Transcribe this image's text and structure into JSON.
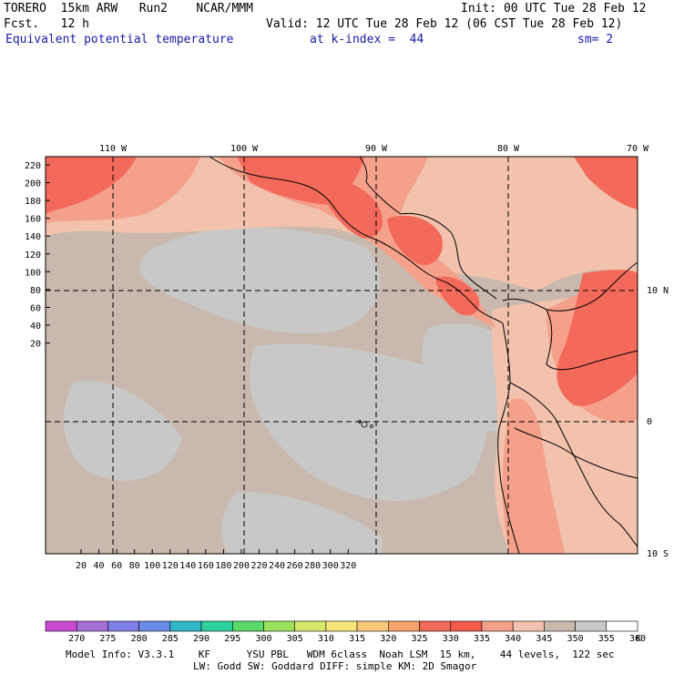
{
  "header": {
    "line1_left": "TORERO  15km ARW   Run2    NCAR/MMM",
    "line1_right": "Init: 00 UTC Tue 28 Feb 12",
    "line2_left": "Fcst.   12 h",
    "line2_right": "Valid: 12 UTC Tue 28 Feb 12 (06 CST Tue 28 Feb 12)",
    "line3_field": "Equivalent potential temperature",
    "line3_level": "at k-index =  44",
    "line3_sm": "sm= 2"
  },
  "map": {
    "top_lon_labels": [
      "110 W",
      "100 W",
      "90 W",
      "80 W",
      "70 W"
    ],
    "right_lat_labels": [
      "10 N",
      "0",
      "10 S"
    ],
    "y_grid_labels": [
      "220",
      "200",
      "180",
      "160",
      "140",
      "120",
      "100",
      "80",
      "60",
      "40",
      "20"
    ],
    "x_grid_labels": [
      "20",
      "40",
      "60",
      "80",
      "100",
      "120",
      "140",
      "160",
      "180",
      "200",
      "220",
      "240",
      "260",
      "280",
      "300",
      "320"
    ],
    "colors": {
      "background_field": "#c8b8ad",
      "cool_region": "#c8c8c8",
      "warm_340": "#f2c2ac",
      "warm_345": "#f4a08a",
      "hot_330": "#f46a5a",
      "hot_325": "#f58a6e",
      "coast": "#000000",
      "grid_line": "#000000"
    }
  },
  "colorbar": {
    "labels": [
      "270",
      "275",
      "280",
      "285",
      "290",
      "295",
      "300",
      "305",
      "310",
      "315",
      "320",
      "325",
      "330",
      "335",
      "340",
      "345",
      "350",
      "355",
      "360"
    ],
    "unit": "K",
    "colors": [
      "#c94ad1",
      "#a56fd6",
      "#7f7fe6",
      "#6a8ce8",
      "#2fb8c8",
      "#2fd0a0",
      "#5ad86a",
      "#9be05a",
      "#d8e66a",
      "#f6e47a",
      "#f6c878",
      "#f6a36c",
      "#f46a5a",
      "#f25a4a",
      "#f4a08a",
      "#f2c2ac",
      "#c8b8ad",
      "#c8c8c8",
      "#ffffff"
    ]
  },
  "footer": {
    "line1": "Model Info: V3.3.1    KF      YSU PBL   WDM 6class  Noah LSM  15 km,    44 levels,  122 sec",
    "line2": "LW: Godd SW: Goddard DIFF: simple KM: 2D Smagor"
  }
}
